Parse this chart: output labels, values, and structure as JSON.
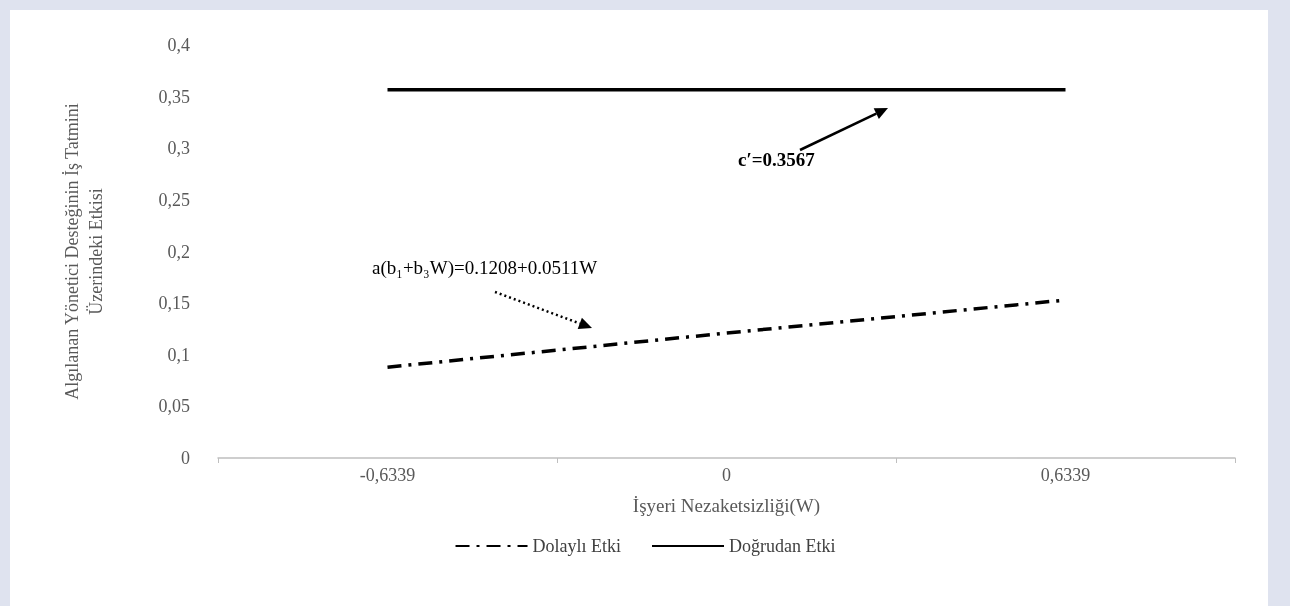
{
  "chart_data": {
    "type": "line",
    "xlabel": "İşyeri Nezaketsizliği(W)",
    "ylabel": "Algılanan Yönetici Desteğinin İş Tatmini\nÜzerindeki Etkisi",
    "categories": [
      "-0,6339",
      "0",
      "0,6339"
    ],
    "series": [
      {
        "name": "Dolaylı Etki",
        "color": "#000000",
        "values": [
          0.088,
          0.121,
          0.153
        ],
        "line_style": "dashdot"
      },
      {
        "name": "Doğrudan Etki",
        "color": "#000000",
        "values": [
          0.3567,
          0.3567,
          0.3567
        ],
        "line_style": "solid"
      }
    ],
    "ylim": [
      0,
      0.4
    ],
    "yticks": [
      {
        "value": 0,
        "label": "0"
      },
      {
        "value": 0.05,
        "label": "0,05"
      },
      {
        "value": 0.1,
        "label": "0,1"
      },
      {
        "value": 0.15,
        "label": "0,15"
      },
      {
        "value": 0.2,
        "label": "0,2"
      },
      {
        "value": 0.25,
        "label": "0,25"
      },
      {
        "value": 0.3,
        "label": "0,3"
      },
      {
        "value": 0.35,
        "label": "0,35"
      },
      {
        "value": 0.4,
        "label": "0,4"
      }
    ],
    "annotations": [
      "c′=0.3567",
      "a(b₁+b₃W)=0.1208+0.0511W"
    ],
    "grid": false,
    "legend": "bottom",
    "marker": "none"
  }
}
